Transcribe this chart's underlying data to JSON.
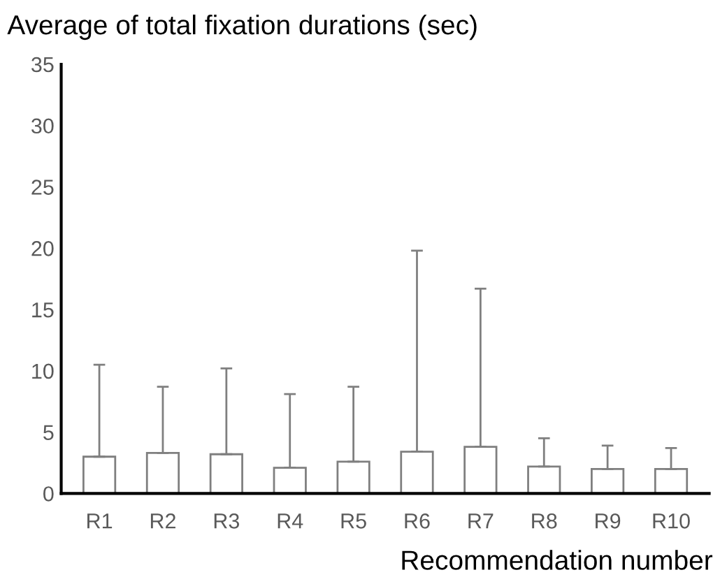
{
  "chart_data": {
    "type": "bar",
    "ylabel": "Average of total fixation durations (sec)",
    "xlabel": "Recommendation number",
    "categories": [
      "R1",
      "R2",
      "R3",
      "R4",
      "R5",
      "R6",
      "R7",
      "R8",
      "R9",
      "R10"
    ],
    "values": [
      3.0,
      3.3,
      3.2,
      2.1,
      2.6,
      3.4,
      3.8,
      2.2,
      2.0,
      2.0
    ],
    "errors": [
      [
        3.0,
        10.5
      ],
      [
        3.3,
        8.7
      ],
      [
        3.2,
        10.2
      ],
      [
        2.1,
        8.1
      ],
      [
        2.6,
        8.7
      ],
      [
        3.4,
        19.8
      ],
      [
        3.8,
        16.7
      ],
      [
        2.2,
        4.5
      ],
      [
        2.0,
        3.9
      ],
      [
        2.0,
        3.7
      ]
    ],
    "color": "#ffffff",
    "ylim": [
      0,
      35
    ],
    "yticks": [
      0,
      5,
      10,
      15,
      20,
      25,
      30,
      35
    ],
    "grid": false,
    "legend": false
  }
}
